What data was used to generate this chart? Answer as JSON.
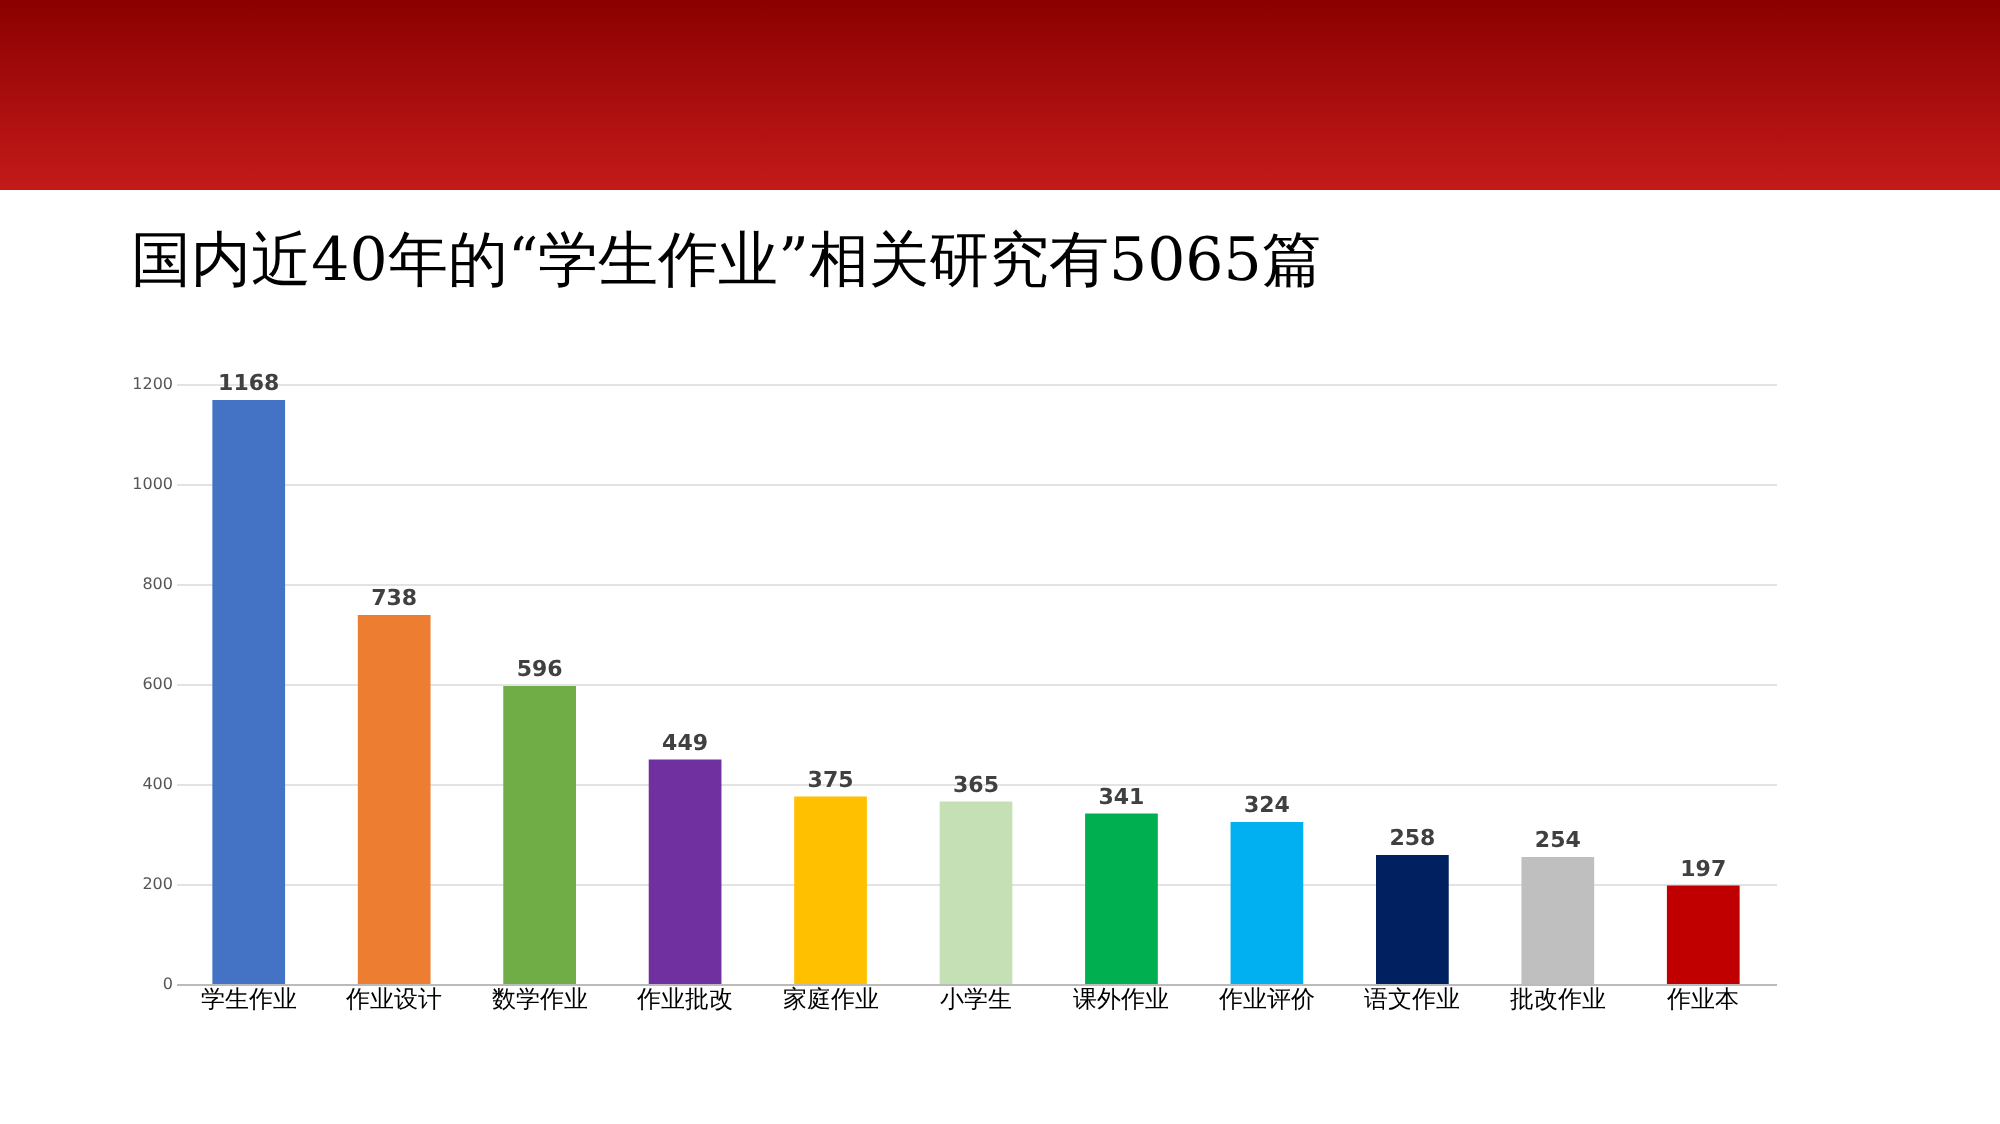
{
  "chart_data": {
    "type": "bar",
    "title": "国内近40年的“学生作业”相关研究有5065篇",
    "categories": [
      "学生作业",
      "作业设计",
      "数学作业",
      "作业批改",
      "家庭作业",
      "小学生",
      "课外作业",
      "作业评价",
      "语文作业",
      "批改作业",
      "作业本"
    ],
    "values": [
      1168,
      738,
      596,
      449,
      375,
      365,
      341,
      324,
      258,
      254,
      197
    ],
    "colors": [
      "#4472c4",
      "#ed7d31",
      "#70ad47",
      "#7030a0",
      "#ffc000",
      "#c5e0b4",
      "#00b050",
      "#00b0f0",
      "#002060",
      "#bfbfbf",
      "#c00000"
    ],
    "ylim": [
      0,
      1200
    ],
    "yticks": [
      0,
      200,
      400,
      600,
      800,
      1000,
      1200
    ],
    "grid": "y",
    "data_labels": true
  }
}
